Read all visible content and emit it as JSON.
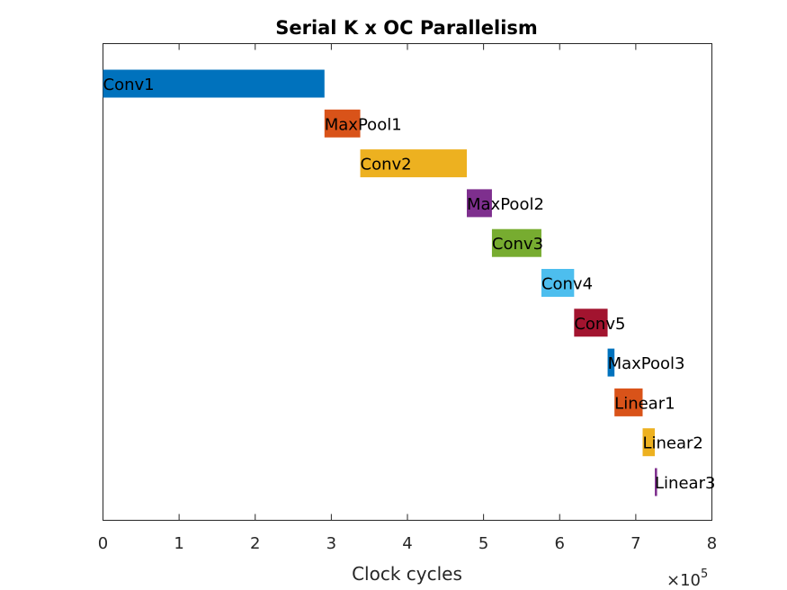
{
  "chart_data": {
    "type": "bar",
    "orientation": "horizontal-gantt",
    "title": "Serial K x OC Parallelism",
    "xlabel": "Clock cycles",
    "ylabel": "",
    "x_multiplier": "×10",
    "x_exponent": "5",
    "xlim": [
      0,
      8
    ],
    "xticks": [
      0,
      1,
      2,
      3,
      4,
      5,
      6,
      7,
      8
    ],
    "grid": false,
    "legend": "none",
    "units_note": "start and end values in units of 10^5 clock cycles",
    "layers": [
      {
        "name": "Conv1",
        "start": 0.0,
        "end": 2.91,
        "color": "#0072BD"
      },
      {
        "name": "MaxPool1",
        "start": 2.91,
        "end": 3.38,
        "color": "#D95319"
      },
      {
        "name": "Conv2",
        "start": 3.38,
        "end": 4.78,
        "color": "#EDB120"
      },
      {
        "name": "MaxPool2",
        "start": 4.78,
        "end": 5.11,
        "color": "#7E2F8E"
      },
      {
        "name": "Conv3",
        "start": 5.11,
        "end": 5.76,
        "color": "#77AC30"
      },
      {
        "name": "Conv4",
        "start": 5.76,
        "end": 6.19,
        "color": "#4DBEEE"
      },
      {
        "name": "Conv5",
        "start": 6.19,
        "end": 6.63,
        "color": "#A2142F"
      },
      {
        "name": "MaxPool3",
        "start": 6.63,
        "end": 6.72,
        "color": "#0072BD"
      },
      {
        "name": "Linear1",
        "start": 6.72,
        "end": 7.09,
        "color": "#D95319"
      },
      {
        "name": "Linear2",
        "start": 7.09,
        "end": 7.25,
        "color": "#EDB120"
      },
      {
        "name": "Linear3",
        "start": 7.25,
        "end": 7.28,
        "color": "#7E2F8E"
      }
    ]
  }
}
